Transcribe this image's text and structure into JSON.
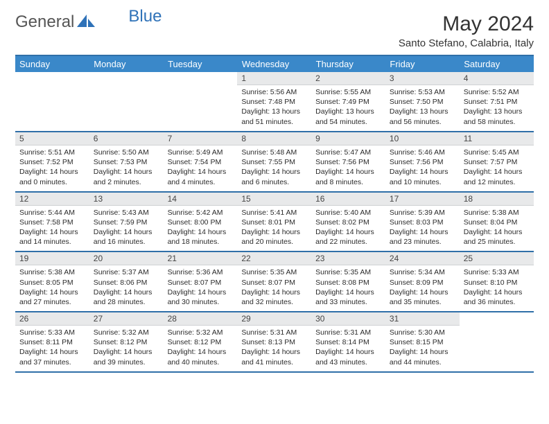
{
  "brand": {
    "part1": "General",
    "part2": "Blue"
  },
  "title": "May 2024",
  "location": "Santo Stefano, Calabria, Italy",
  "colors": {
    "header_bg": "#3a88c9",
    "header_text": "#ffffff",
    "row_border": "#2f6fa8",
    "daynum_bg": "#e8e9ea",
    "logo_blue": "#2f72b8",
    "text": "#333333"
  },
  "weekdays": [
    "Sunday",
    "Monday",
    "Tuesday",
    "Wednesday",
    "Thursday",
    "Friday",
    "Saturday"
  ],
  "weeks": [
    [
      null,
      null,
      null,
      {
        "n": "1",
        "sr": "5:56 AM",
        "ss": "7:48 PM",
        "dl": "13 hours and 51 minutes."
      },
      {
        "n": "2",
        "sr": "5:55 AM",
        "ss": "7:49 PM",
        "dl": "13 hours and 54 minutes."
      },
      {
        "n": "3",
        "sr": "5:53 AM",
        "ss": "7:50 PM",
        "dl": "13 hours and 56 minutes."
      },
      {
        "n": "4",
        "sr": "5:52 AM",
        "ss": "7:51 PM",
        "dl": "13 hours and 58 minutes."
      }
    ],
    [
      {
        "n": "5",
        "sr": "5:51 AM",
        "ss": "7:52 PM",
        "dl": "14 hours and 0 minutes."
      },
      {
        "n": "6",
        "sr": "5:50 AM",
        "ss": "7:53 PM",
        "dl": "14 hours and 2 minutes."
      },
      {
        "n": "7",
        "sr": "5:49 AM",
        "ss": "7:54 PM",
        "dl": "14 hours and 4 minutes."
      },
      {
        "n": "8",
        "sr": "5:48 AM",
        "ss": "7:55 PM",
        "dl": "14 hours and 6 minutes."
      },
      {
        "n": "9",
        "sr": "5:47 AM",
        "ss": "7:56 PM",
        "dl": "14 hours and 8 minutes."
      },
      {
        "n": "10",
        "sr": "5:46 AM",
        "ss": "7:56 PM",
        "dl": "14 hours and 10 minutes."
      },
      {
        "n": "11",
        "sr": "5:45 AM",
        "ss": "7:57 PM",
        "dl": "14 hours and 12 minutes."
      }
    ],
    [
      {
        "n": "12",
        "sr": "5:44 AM",
        "ss": "7:58 PM",
        "dl": "14 hours and 14 minutes."
      },
      {
        "n": "13",
        "sr": "5:43 AM",
        "ss": "7:59 PM",
        "dl": "14 hours and 16 minutes."
      },
      {
        "n": "14",
        "sr": "5:42 AM",
        "ss": "8:00 PM",
        "dl": "14 hours and 18 minutes."
      },
      {
        "n": "15",
        "sr": "5:41 AM",
        "ss": "8:01 PM",
        "dl": "14 hours and 20 minutes."
      },
      {
        "n": "16",
        "sr": "5:40 AM",
        "ss": "8:02 PM",
        "dl": "14 hours and 22 minutes."
      },
      {
        "n": "17",
        "sr": "5:39 AM",
        "ss": "8:03 PM",
        "dl": "14 hours and 23 minutes."
      },
      {
        "n": "18",
        "sr": "5:38 AM",
        "ss": "8:04 PM",
        "dl": "14 hours and 25 minutes."
      }
    ],
    [
      {
        "n": "19",
        "sr": "5:38 AM",
        "ss": "8:05 PM",
        "dl": "14 hours and 27 minutes."
      },
      {
        "n": "20",
        "sr": "5:37 AM",
        "ss": "8:06 PM",
        "dl": "14 hours and 28 minutes."
      },
      {
        "n": "21",
        "sr": "5:36 AM",
        "ss": "8:07 PM",
        "dl": "14 hours and 30 minutes."
      },
      {
        "n": "22",
        "sr": "5:35 AM",
        "ss": "8:07 PM",
        "dl": "14 hours and 32 minutes."
      },
      {
        "n": "23",
        "sr": "5:35 AM",
        "ss": "8:08 PM",
        "dl": "14 hours and 33 minutes."
      },
      {
        "n": "24",
        "sr": "5:34 AM",
        "ss": "8:09 PM",
        "dl": "14 hours and 35 minutes."
      },
      {
        "n": "25",
        "sr": "5:33 AM",
        "ss": "8:10 PM",
        "dl": "14 hours and 36 minutes."
      }
    ],
    [
      {
        "n": "26",
        "sr": "5:33 AM",
        "ss": "8:11 PM",
        "dl": "14 hours and 37 minutes."
      },
      {
        "n": "27",
        "sr": "5:32 AM",
        "ss": "8:12 PM",
        "dl": "14 hours and 39 minutes."
      },
      {
        "n": "28",
        "sr": "5:32 AM",
        "ss": "8:12 PM",
        "dl": "14 hours and 40 minutes."
      },
      {
        "n": "29",
        "sr": "5:31 AM",
        "ss": "8:13 PM",
        "dl": "14 hours and 41 minutes."
      },
      {
        "n": "30",
        "sr": "5:31 AM",
        "ss": "8:14 PM",
        "dl": "14 hours and 43 minutes."
      },
      {
        "n": "31",
        "sr": "5:30 AM",
        "ss": "8:15 PM",
        "dl": "14 hours and 44 minutes."
      },
      null
    ]
  ],
  "labels": {
    "sunrise": "Sunrise:",
    "sunset": "Sunset:",
    "daylight": "Daylight:"
  }
}
